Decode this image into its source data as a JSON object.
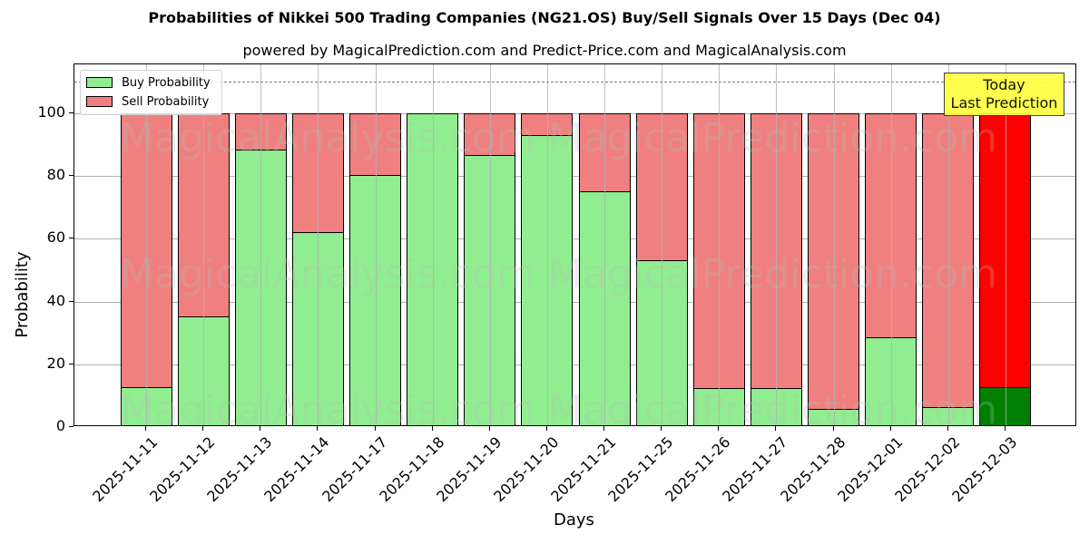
{
  "title": "Probabilities of Nikkei 500 Trading Companies (NG21.OS) Buy/Sell Signals Over 15 Days (Dec 04)",
  "subtitle": "powered by MagicalPrediction.com and Predict-Price.com and MagicalAnalysis.com",
  "legend": {
    "buy_label": "Buy Probability",
    "sell_label": "Sell Probability"
  },
  "annotation": {
    "line1": "Today",
    "line2": "Last Prediction"
  },
  "watermarks": [
    "MagicalAnalysis.com",
    "MagicalPrediction.com"
  ],
  "axes": {
    "xlabel": "Days",
    "ylabel": "Probability",
    "yticks": [
      "0",
      "20",
      "40",
      "60",
      "80",
      "100"
    ]
  },
  "colors": {
    "buy": "#90ee90",
    "sell": "#f08080",
    "today_buy": "#008000",
    "today_sell": "#ff0000",
    "annotation_bg": "#ffff40",
    "threshold_line": "#808080"
  },
  "chart_data": {
    "type": "bar",
    "stacked": true,
    "title": "Probabilities of Nikkei 500 Trading Companies (NG21.OS) Buy/Sell Signals Over 15 Days (Dec 04)",
    "subtitle": "powered by MagicalPrediction.com and Predict-Price.com and MagicalAnalysis.com",
    "xlabel": "Days",
    "ylabel": "Probability",
    "ylim": [
      0,
      115
    ],
    "yticks": [
      0,
      20,
      40,
      60,
      80,
      100
    ],
    "grid": true,
    "legend_position": "upper left",
    "reference_line": {
      "y": 110,
      "style": "dashed",
      "color": "#808080"
    },
    "annotation": {
      "text": "Today\nLast Prediction",
      "x": "2025-12-03"
    },
    "categories": [
      "2025-11-11",
      "2025-11-12",
      "2025-11-13",
      "2025-11-14",
      "2025-11-17",
      "2025-11-18",
      "2025-11-19",
      "2025-11-20",
      "2025-11-21",
      "2025-11-25",
      "2025-11-26",
      "2025-11-27",
      "2025-11-28",
      "2025-12-01",
      "2025-12-02",
      "2025-12-03"
    ],
    "series": [
      {
        "name": "Buy Probability",
        "values": [
          12.7,
          35.4,
          88.3,
          62.2,
          80.3,
          100.0,
          86.7,
          93.1,
          75.1,
          53.1,
          12.3,
          12.3,
          5.7,
          28.7,
          6.5,
          12.6
        ]
      },
      {
        "name": "Sell Probability",
        "values": [
          87.3,
          64.6,
          11.7,
          37.8,
          19.7,
          0.0,
          13.3,
          6.9,
          24.9,
          46.9,
          87.7,
          87.7,
          94.3,
          71.3,
          93.5,
          87.4
        ]
      }
    ]
  }
}
